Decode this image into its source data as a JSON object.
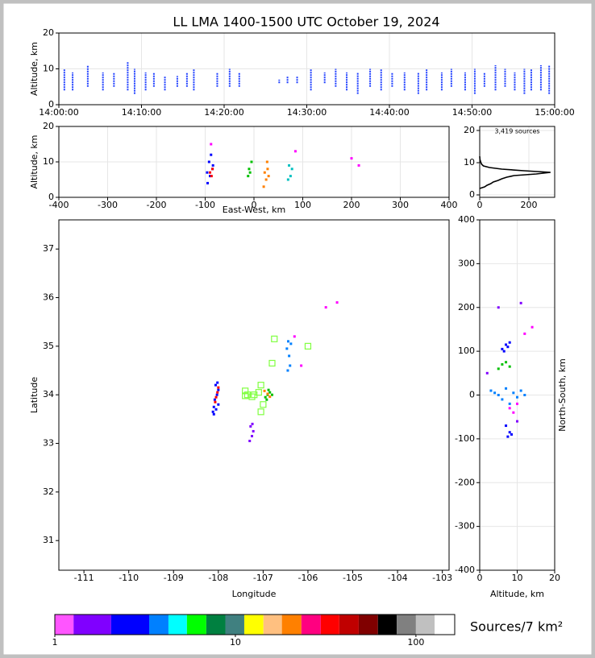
{
  "chart_data": [
    {
      "type": "range",
      "title": "LL LMA 1400-1500 UTC October 19, 2024",
      "ylabel": "Altitude, km",
      "x": [
        "14:00:40",
        "14:01:40",
        "14:03:30",
        "14:05:20",
        "14:06:40",
        "14:08:20",
        "14:09:10",
        "14:10:30",
        "14:11:30",
        "14:12:50",
        "14:14:20",
        "14:15:30",
        "14:16:20",
        "14:19:10",
        "14:20:40",
        "14:21:50",
        "14:26:40",
        "14:27:40",
        "14:28:50",
        "14:30:30",
        "14:32:10",
        "14:33:30",
        "14:34:50",
        "14:36:10",
        "14:37:40",
        "14:39:00",
        "14:40:20",
        "14:41:50",
        "14:43:30",
        "14:44:30",
        "14:46:20",
        "14:47:30",
        "14:49:10",
        "14:50:20",
        "14:51:30",
        "14:52:50",
        "14:54:00",
        "14:55:10",
        "14:56:20",
        "14:57:10",
        "14:58:20",
        "14:59:20"
      ],
      "low": [
        4,
        4,
        5,
        4,
        5,
        4,
        3,
        4,
        5,
        4,
        5,
        5,
        4,
        5,
        5,
        5,
        6,
        6,
        6,
        4,
        6,
        5,
        4,
        3,
        5,
        4,
        5,
        4,
        3,
        4,
        4,
        5,
        4,
        3,
        5,
        4,
        5,
        4,
        3,
        4,
        4,
        3
      ],
      "high": [
        10,
        9,
        11,
        9,
        9,
        12,
        10,
        9,
        9,
        8,
        8,
        9,
        10,
        9,
        10,
        9,
        7,
        8,
        8,
        10,
        9,
        10,
        9,
        9,
        10,
        10,
        9,
        9,
        9,
        10,
        9,
        10,
        9,
        10,
        9,
        11,
        10,
        9,
        10,
        10,
        11,
        11
      ],
      "color": "#2040ff",
      "xlim": [
        "14:00:00",
        "15:00:00"
      ],
      "xticks": [
        "14:00:00",
        "14:10:00",
        "14:20:00",
        "14:30:00",
        "14:40:00",
        "14:50:00",
        "15:00:00"
      ],
      "ylim": [
        0,
        20
      ],
      "yticks": [
        0,
        10,
        20
      ],
      "grid": true
    },
    {
      "type": "scatter",
      "xlabel": "East-West, km",
      "ylabel": "Altitude, km",
      "groups": [
        {
          "color": "#0000ff",
          "x": [
            -95,
            -90,
            -85,
            -92,
            -88,
            -96,
            -84
          ],
          "y": [
            4,
            6,
            8,
            10,
            12,
            7,
            9
          ]
        },
        {
          "color": "#ff0000",
          "x": [
            -87,
            -90,
            -85
          ],
          "y": [
            6,
            7,
            8
          ]
        },
        {
          "color": "#00c000",
          "x": [
            -12,
            -8,
            -10,
            -5
          ],
          "y": [
            6,
            7,
            8,
            10
          ]
        },
        {
          "color": "#ff8000",
          "x": [
            20,
            25,
            30,
            22,
            28,
            27
          ],
          "y": [
            3,
            5,
            6,
            7,
            8,
            10
          ]
        },
        {
          "color": "#00c0c0",
          "x": [
            70,
            75,
            78,
            72
          ],
          "y": [
            5,
            6,
            8,
            9
          ]
        },
        {
          "color": "#ff00ff",
          "x": [
            -88,
            200,
            215,
            85
          ],
          "y": [
            15,
            11,
            9,
            13
          ]
        }
      ],
      "xlim": [
        -400,
        400
      ],
      "xticks": [
        -400,
        -300,
        -200,
        -100,
        0,
        100,
        200,
        300,
        400
      ],
      "ylim": [
        0,
        20
      ],
      "yticks": [
        0,
        10,
        20
      ],
      "grid": true
    },
    {
      "type": "line",
      "annotation": "3,419 sources",
      "color": "#000000",
      "x": [
        0,
        20,
        30,
        45,
        55,
        75,
        90,
        110,
        140,
        230,
        288,
        180,
        90,
        40,
        15,
        8,
        5,
        3,
        1,
        0
      ],
      "y": [
        2,
        2.5,
        3,
        3.5,
        4,
        4.5,
        5,
        5.5,
        6,
        6.5,
        7,
        7.5,
        8,
        8.5,
        9,
        9.5,
        10,
        10.5,
        11,
        12
      ],
      "xlim": [
        0,
        305
      ],
      "xticks": [
        0,
        200
      ],
      "ylim": [
        -0.75,
        21.25
      ],
      "yticks": [
        0,
        10,
        20
      ],
      "grid": true
    },
    {
      "type": "scatter",
      "xlabel": "Longitude",
      "ylabel": "Latitude",
      "groups": [
        {
          "color": "#0000ff",
          "x": [
            -108.1,
            -108.05,
            -108.0,
            -108.08,
            -108.03,
            -108.12,
            -108.0,
            -108.06,
            -108.1,
            -108.02
          ],
          "y": [
            33.6,
            33.7,
            33.8,
            33.9,
            34.0,
            33.65,
            34.1,
            34.2,
            33.75,
            34.25
          ]
        },
        {
          "color": "#ff0000",
          "x": [
            -108.05,
            -108.02,
            -108.07,
            -108.0
          ],
          "y": [
            33.95,
            34.05,
            33.85,
            34.15
          ]
        },
        {
          "color": "#8000ff",
          "x": [
            -107.3,
            -107.25,
            -107.22,
            -107.28,
            -107.24
          ],
          "y": [
            33.05,
            33.15,
            33.25,
            33.35,
            33.4
          ]
        },
        {
          "color": "#00c000",
          "x": [
            -106.95,
            -106.9,
            -106.85,
            -106.88,
            -106.92,
            -106.8
          ],
          "y": [
            33.95,
            34.0,
            34.05,
            34.1,
            33.9,
            34.0
          ]
        },
        {
          "color": "#ff8000",
          "x": [
            -106.9,
            -106.97,
            -106.85
          ],
          "y": [
            34.02,
            34.08,
            33.96
          ]
        },
        {
          "color": "#0080ff",
          "x": [
            -106.45,
            -106.4,
            -106.42,
            -106.47,
            -106.38,
            -106.44
          ],
          "y": [
            34.5,
            34.6,
            34.8,
            34.95,
            35.05,
            35.1
          ]
        },
        {
          "color": "#ff00ff",
          "x": [
            -106.15,
            -105.6,
            -105.35,
            -106.3
          ],
          "y": [
            34.6,
            35.8,
            35.9,
            35.2
          ]
        }
      ],
      "stations": {
        "color": "#80ff40",
        "x": [
          -107.35,
          -107.4,
          -107.2,
          -107.05,
          -107.1,
          -107.0,
          -107.05,
          -106.8,
          -106.75,
          -106.0,
          -107.4,
          -107.25
        ],
        "y": [
          34.0,
          34.08,
          34.0,
          34.2,
          34.05,
          33.8,
          33.65,
          34.65,
          35.15,
          35.0,
          33.98,
          33.96
        ]
      },
      "xlim": [
        -111.56,
        -102.85
      ],
      "xticks": [
        -111,
        -110,
        -109,
        -108,
        -107,
        -106,
        -105,
        -104,
        -103
      ],
      "ylim": [
        30.39,
        37.6
      ],
      "yticks": [
        31,
        32,
        33,
        34,
        35,
        36,
        37
      ],
      "grid": false
    },
    {
      "type": "scatter",
      "xlabel": "Altitude, km",
      "ylabel": "North-South, km",
      "groups": [
        {
          "color": "#0000ff",
          "x": [
            6,
            7,
            8,
            7.5,
            6.5
          ],
          "y": [
            105,
            115,
            120,
            110,
            100
          ]
        },
        {
          "color": "#00c000",
          "x": [
            5,
            6,
            7,
            8
          ],
          "y": [
            60,
            70,
            75,
            65
          ]
        },
        {
          "color": "#0080ff",
          "x": [
            3,
            4,
            5,
            6,
            7,
            8,
            9,
            10,
            11,
            12
          ],
          "y": [
            10,
            5,
            0,
            -10,
            15,
            -20,
            5,
            -5,
            10,
            0
          ]
        },
        {
          "color": "#ff00ff",
          "x": [
            8,
            9,
            10,
            12,
            14
          ],
          "y": [
            -30,
            -40,
            -20,
            140,
            155
          ]
        },
        {
          "color": "#0000ff",
          "x": [
            7,
            8,
            7.5,
            8.5
          ],
          "y": [
            -70,
            -85,
            -95,
            -90
          ]
        },
        {
          "color": "#8000ff",
          "x": [
            5,
            11,
            10,
            2
          ],
          "y": [
            200,
            210,
            -60,
            50
          ]
        }
      ],
      "xlim": [
        0,
        20
      ],
      "xticks": [
        0,
        10,
        20
      ],
      "ylim": [
        -400,
        400
      ],
      "yticks": [
        -400,
        -300,
        -200,
        -100,
        0,
        100,
        200,
        300,
        400
      ],
      "grid": true
    },
    {
      "type": "colorbar",
      "label": "Sources/7 km²",
      "log_scale": true,
      "colors": [
        "#ff55ff",
        "#8000ff",
        "#0000ff",
        "#0080ff",
        "#00ffff",
        "#00ff00",
        "#008040",
        "#408080",
        "#ffff00",
        "#ffc080",
        "#ff8000",
        "#ff0080",
        "#ff0000",
        "#c00000",
        "#800000",
        "#000000",
        "#808080",
        "#c0c0c0",
        "#ffffff"
      ],
      "bounds": [
        1,
        1.27,
        2.05,
        3.33,
        4.26,
        5.39,
        6.9,
        8.8,
        11.2,
        14.3,
        18.1,
        23.2,
        29.7,
        37.6,
        48.2,
        61.6,
        78.3,
        100,
        127,
        164
      ],
      "xticks": [
        1,
        10,
        100
      ]
    }
  ]
}
